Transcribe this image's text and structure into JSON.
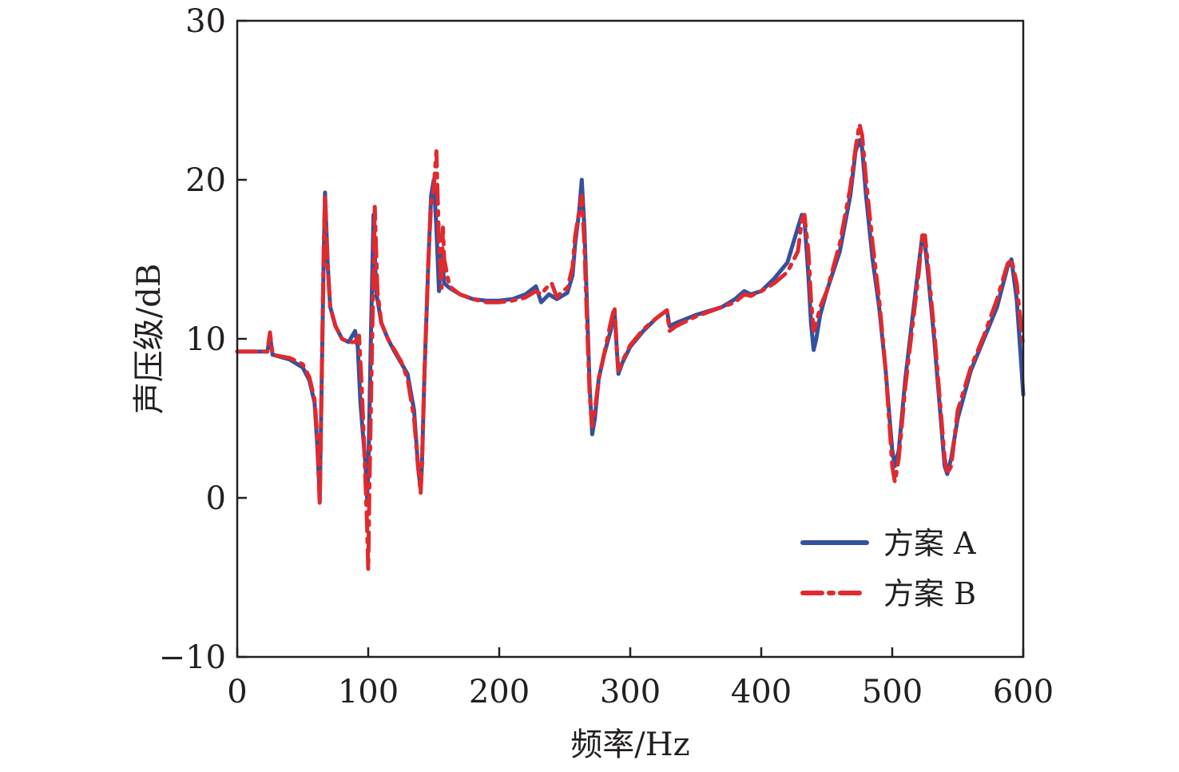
{
  "chart_data": {
    "type": "line",
    "title": "",
    "xlabel": "频率/Hz",
    "ylabel": "声压级/dB",
    "xlim": [
      0,
      600
    ],
    "ylim": [
      -10,
      30
    ],
    "xticks": [
      0,
      100,
      200,
      300,
      400,
      500,
      600
    ],
    "yticks": [
      -10,
      0,
      10,
      20,
      30
    ],
    "xtick_labels": [
      "0",
      "100",
      "200",
      "300",
      "400",
      "500",
      "600"
    ],
    "ytick_labels": [
      "−10",
      "0",
      "10",
      "20",
      "30"
    ],
    "grid": false,
    "legend_position": "bottom-right",
    "series": [
      {
        "name": "方案 A",
        "color": "#3450a0",
        "line_style": "solid",
        "points": [
          [
            0,
            9.2
          ],
          [
            20,
            9.2
          ],
          [
            23,
            9.2
          ],
          [
            25,
            10.2
          ],
          [
            27,
            9.0
          ],
          [
            40,
            8.7
          ],
          [
            50,
            8.2
          ],
          [
            55,
            7.4
          ],
          [
            59,
            6.0
          ],
          [
            61,
            3.5
          ],
          [
            63,
            0.0
          ],
          [
            64,
            5.0
          ],
          [
            66,
            15.0
          ],
          [
            67,
            19.2
          ],
          [
            69,
            14.8
          ],
          [
            71,
            12.0
          ],
          [
            75,
            10.8
          ],
          [
            80,
            10.0
          ],
          [
            85,
            9.8
          ],
          [
            90,
            10.5
          ],
          [
            92,
            9.5
          ],
          [
            94,
            6.0
          ],
          [
            96,
            4.0
          ],
          [
            98,
            2.0
          ],
          [
            99,
            0.0
          ],
          [
            100,
            1.5
          ],
          [
            102,
            10.0
          ],
          [
            104,
            17.8
          ],
          [
            106,
            13.0
          ],
          [
            110,
            11.0
          ],
          [
            115,
            10.0
          ],
          [
            120,
            9.2
          ],
          [
            125,
            8.5
          ],
          [
            130,
            7.8
          ],
          [
            135,
            5.5
          ],
          [
            138,
            2.0
          ],
          [
            140,
            0.5
          ],
          [
            141,
            2.0
          ],
          [
            143,
            8.0
          ],
          [
            146,
            15.0
          ],
          [
            148,
            19.0
          ],
          [
            150,
            20.0
          ],
          [
            152,
            17.0
          ],
          [
            154,
            13.0
          ],
          [
            156,
            15.5
          ],
          [
            158,
            13.5
          ],
          [
            162,
            13.2
          ],
          [
            170,
            12.8
          ],
          [
            180,
            12.5
          ],
          [
            190,
            12.4
          ],
          [
            200,
            12.4
          ],
          [
            210,
            12.5
          ],
          [
            220,
            12.8
          ],
          [
            228,
            13.3
          ],
          [
            232,
            12.3
          ],
          [
            238,
            12.8
          ],
          [
            244,
            12.5
          ],
          [
            248,
            12.7
          ],
          [
            252,
            12.9
          ],
          [
            256,
            14.0
          ],
          [
            258,
            16.0
          ],
          [
            261,
            18.0
          ],
          [
            263,
            20.0
          ],
          [
            265,
            17.0
          ],
          [
            267,
            12.0
          ],
          [
            269,
            7.0
          ],
          [
            271,
            4.0
          ],
          [
            273,
            5.0
          ],
          [
            276,
            7.5
          ],
          [
            280,
            9.0
          ],
          [
            285,
            10.5
          ],
          [
            288,
            11.8
          ],
          [
            290,
            9.0
          ],
          [
            291,
            7.8
          ],
          [
            294,
            8.5
          ],
          [
            300,
            9.5
          ],
          [
            310,
            10.5
          ],
          [
            320,
            11.3
          ],
          [
            328,
            11.8
          ],
          [
            330,
            10.8
          ],
          [
            335,
            11.0
          ],
          [
            350,
            11.5
          ],
          [
            370,
            12.0
          ],
          [
            380,
            12.5
          ],
          [
            387,
            13.0
          ],
          [
            392,
            12.8
          ],
          [
            400,
            13.0
          ],
          [
            410,
            13.8
          ],
          [
            420,
            14.8
          ],
          [
            428,
            17.0
          ],
          [
            431,
            17.8
          ],
          [
            433,
            17.5
          ],
          [
            436,
            14.0
          ],
          [
            438,
            11.0
          ],
          [
            440,
            9.3
          ],
          [
            442,
            10.0
          ],
          [
            445,
            11.5
          ],
          [
            450,
            13.0
          ],
          [
            460,
            15.5
          ],
          [
            468,
            19.0
          ],
          [
            472,
            21.8
          ],
          [
            475,
            22.5
          ],
          [
            477,
            22.0
          ],
          [
            480,
            19.0
          ],
          [
            485,
            15.0
          ],
          [
            490,
            12.0
          ],
          [
            495,
            8.0
          ],
          [
            498,
            5.0
          ],
          [
            500,
            3.0
          ],
          [
            502,
            2.0
          ],
          [
            505,
            3.0
          ],
          [
            510,
            7.5
          ],
          [
            515,
            11.0
          ],
          [
            520,
            14.5
          ],
          [
            523,
            16.5
          ],
          [
            525,
            16.0
          ],
          [
            528,
            13.5
          ],
          [
            532,
            10.0
          ],
          [
            537,
            5.0
          ],
          [
            540,
            2.0
          ],
          [
            542,
            1.5
          ],
          [
            545,
            2.5
          ],
          [
            550,
            5.0
          ],
          [
            560,
            8.0
          ],
          [
            570,
            10.0
          ],
          [
            580,
            12.0
          ],
          [
            588,
            14.5
          ],
          [
            591,
            15.0
          ],
          [
            595,
            12.5
          ],
          [
            598,
            9.0
          ],
          [
            600,
            6.5
          ]
        ]
      },
      {
        "name": "方案 B",
        "color": "#e02a2e",
        "line_style": "dash-dot",
        "points": [
          [
            0,
            9.2
          ],
          [
            20,
            9.2
          ],
          [
            23,
            9.2
          ],
          [
            25,
            10.4
          ],
          [
            27,
            9.0
          ],
          [
            40,
            8.8
          ],
          [
            50,
            8.4
          ],
          [
            55,
            7.6
          ],
          [
            59,
            6.2
          ],
          [
            61,
            4.0
          ],
          [
            63,
            -0.5
          ],
          [
            64,
            5.0
          ],
          [
            66,
            15.5
          ],
          [
            67,
            19.0
          ],
          [
            69,
            14.5
          ],
          [
            71,
            12.0
          ],
          [
            75,
            10.8
          ],
          [
            80,
            10.0
          ],
          [
            85,
            9.8
          ],
          [
            90,
            9.8
          ],
          [
            93,
            10.2
          ],
          [
            95,
            7.0
          ],
          [
            97,
            3.0
          ],
          [
            99,
            -1.5
          ],
          [
            100,
            -4.5
          ],
          [
            101,
            1.0
          ],
          [
            103,
            10.0
          ],
          [
            105,
            18.3
          ],
          [
            107,
            13.0
          ],
          [
            110,
            11.0
          ],
          [
            115,
            10.0
          ],
          [
            120,
            9.3
          ],
          [
            125,
            8.6
          ],
          [
            130,
            7.5
          ],
          [
            135,
            5.0
          ],
          [
            138,
            2.0
          ],
          [
            140,
            0.3
          ],
          [
            141,
            2.0
          ],
          [
            143,
            8.0
          ],
          [
            146,
            15.0
          ],
          [
            148,
            18.5
          ],
          [
            150,
            19.5
          ],
          [
            152,
            21.8
          ],
          [
            154,
            16.0
          ],
          [
            156,
            13.2
          ],
          [
            157,
            17.0
          ],
          [
            158,
            15.0
          ],
          [
            162,
            13.3
          ],
          [
            170,
            12.8
          ],
          [
            180,
            12.5
          ],
          [
            190,
            12.3
          ],
          [
            200,
            12.3
          ],
          [
            210,
            12.4
          ],
          [
            220,
            12.6
          ],
          [
            228,
            13.0
          ],
          [
            232,
            12.8
          ],
          [
            236,
            13.2
          ],
          [
            240,
            13.5
          ],
          [
            244,
            12.6
          ],
          [
            248,
            13.0
          ],
          [
            252,
            13.2
          ],
          [
            256,
            14.5
          ],
          [
            258,
            16.5
          ],
          [
            261,
            18.0
          ],
          [
            263,
            19.0
          ],
          [
            265,
            16.0
          ],
          [
            267,
            11.0
          ],
          [
            269,
            6.5
          ],
          [
            271,
            4.5
          ],
          [
            273,
            5.5
          ],
          [
            276,
            7.5
          ],
          [
            280,
            9.0
          ],
          [
            285,
            11.0
          ],
          [
            288,
            12.0
          ],
          [
            290,
            9.0
          ],
          [
            291,
            8.0
          ],
          [
            294,
            8.6
          ],
          [
            300,
            9.6
          ],
          [
            310,
            10.6
          ],
          [
            320,
            11.3
          ],
          [
            328,
            11.8
          ],
          [
            330,
            10.5
          ],
          [
            335,
            10.8
          ],
          [
            350,
            11.4
          ],
          [
            370,
            12.0
          ],
          [
            380,
            12.3
          ],
          [
            387,
            12.8
          ],
          [
            392,
            12.7
          ],
          [
            400,
            13.0
          ],
          [
            410,
            13.5
          ],
          [
            420,
            14.2
          ],
          [
            428,
            15.5
          ],
          [
            431,
            17.5
          ],
          [
            433,
            17.8
          ],
          [
            436,
            15.5
          ],
          [
            438,
            12.5
          ],
          [
            440,
            10.5
          ],
          [
            442,
            11.0
          ],
          [
            445,
            12.0
          ],
          [
            450,
            13.0
          ],
          [
            460,
            16.0
          ],
          [
            468,
            19.5
          ],
          [
            472,
            22.0
          ],
          [
            475,
            23.5
          ],
          [
            477,
            22.8
          ],
          [
            480,
            20.0
          ],
          [
            485,
            16.0
          ],
          [
            490,
            12.5
          ],
          [
            495,
            8.0
          ],
          [
            498,
            4.5
          ],
          [
            500,
            2.0
          ],
          [
            502,
            1.0
          ],
          [
            505,
            2.5
          ],
          [
            510,
            7.0
          ],
          [
            515,
            10.5
          ],
          [
            520,
            14.0
          ],
          [
            523,
            16.5
          ],
          [
            525,
            16.5
          ],
          [
            528,
            14.0
          ],
          [
            532,
            10.5
          ],
          [
            537,
            5.5
          ],
          [
            540,
            2.5
          ],
          [
            542,
            1.5
          ],
          [
            545,
            2.0
          ],
          [
            550,
            5.5
          ],
          [
            560,
            8.2
          ],
          [
            570,
            10.2
          ],
          [
            580,
            12.5
          ],
          [
            588,
            14.7
          ],
          [
            591,
            15.0
          ],
          [
            595,
            13.5
          ],
          [
            598,
            11.0
          ],
          [
            600,
            9.5
          ]
        ]
      }
    ]
  }
}
